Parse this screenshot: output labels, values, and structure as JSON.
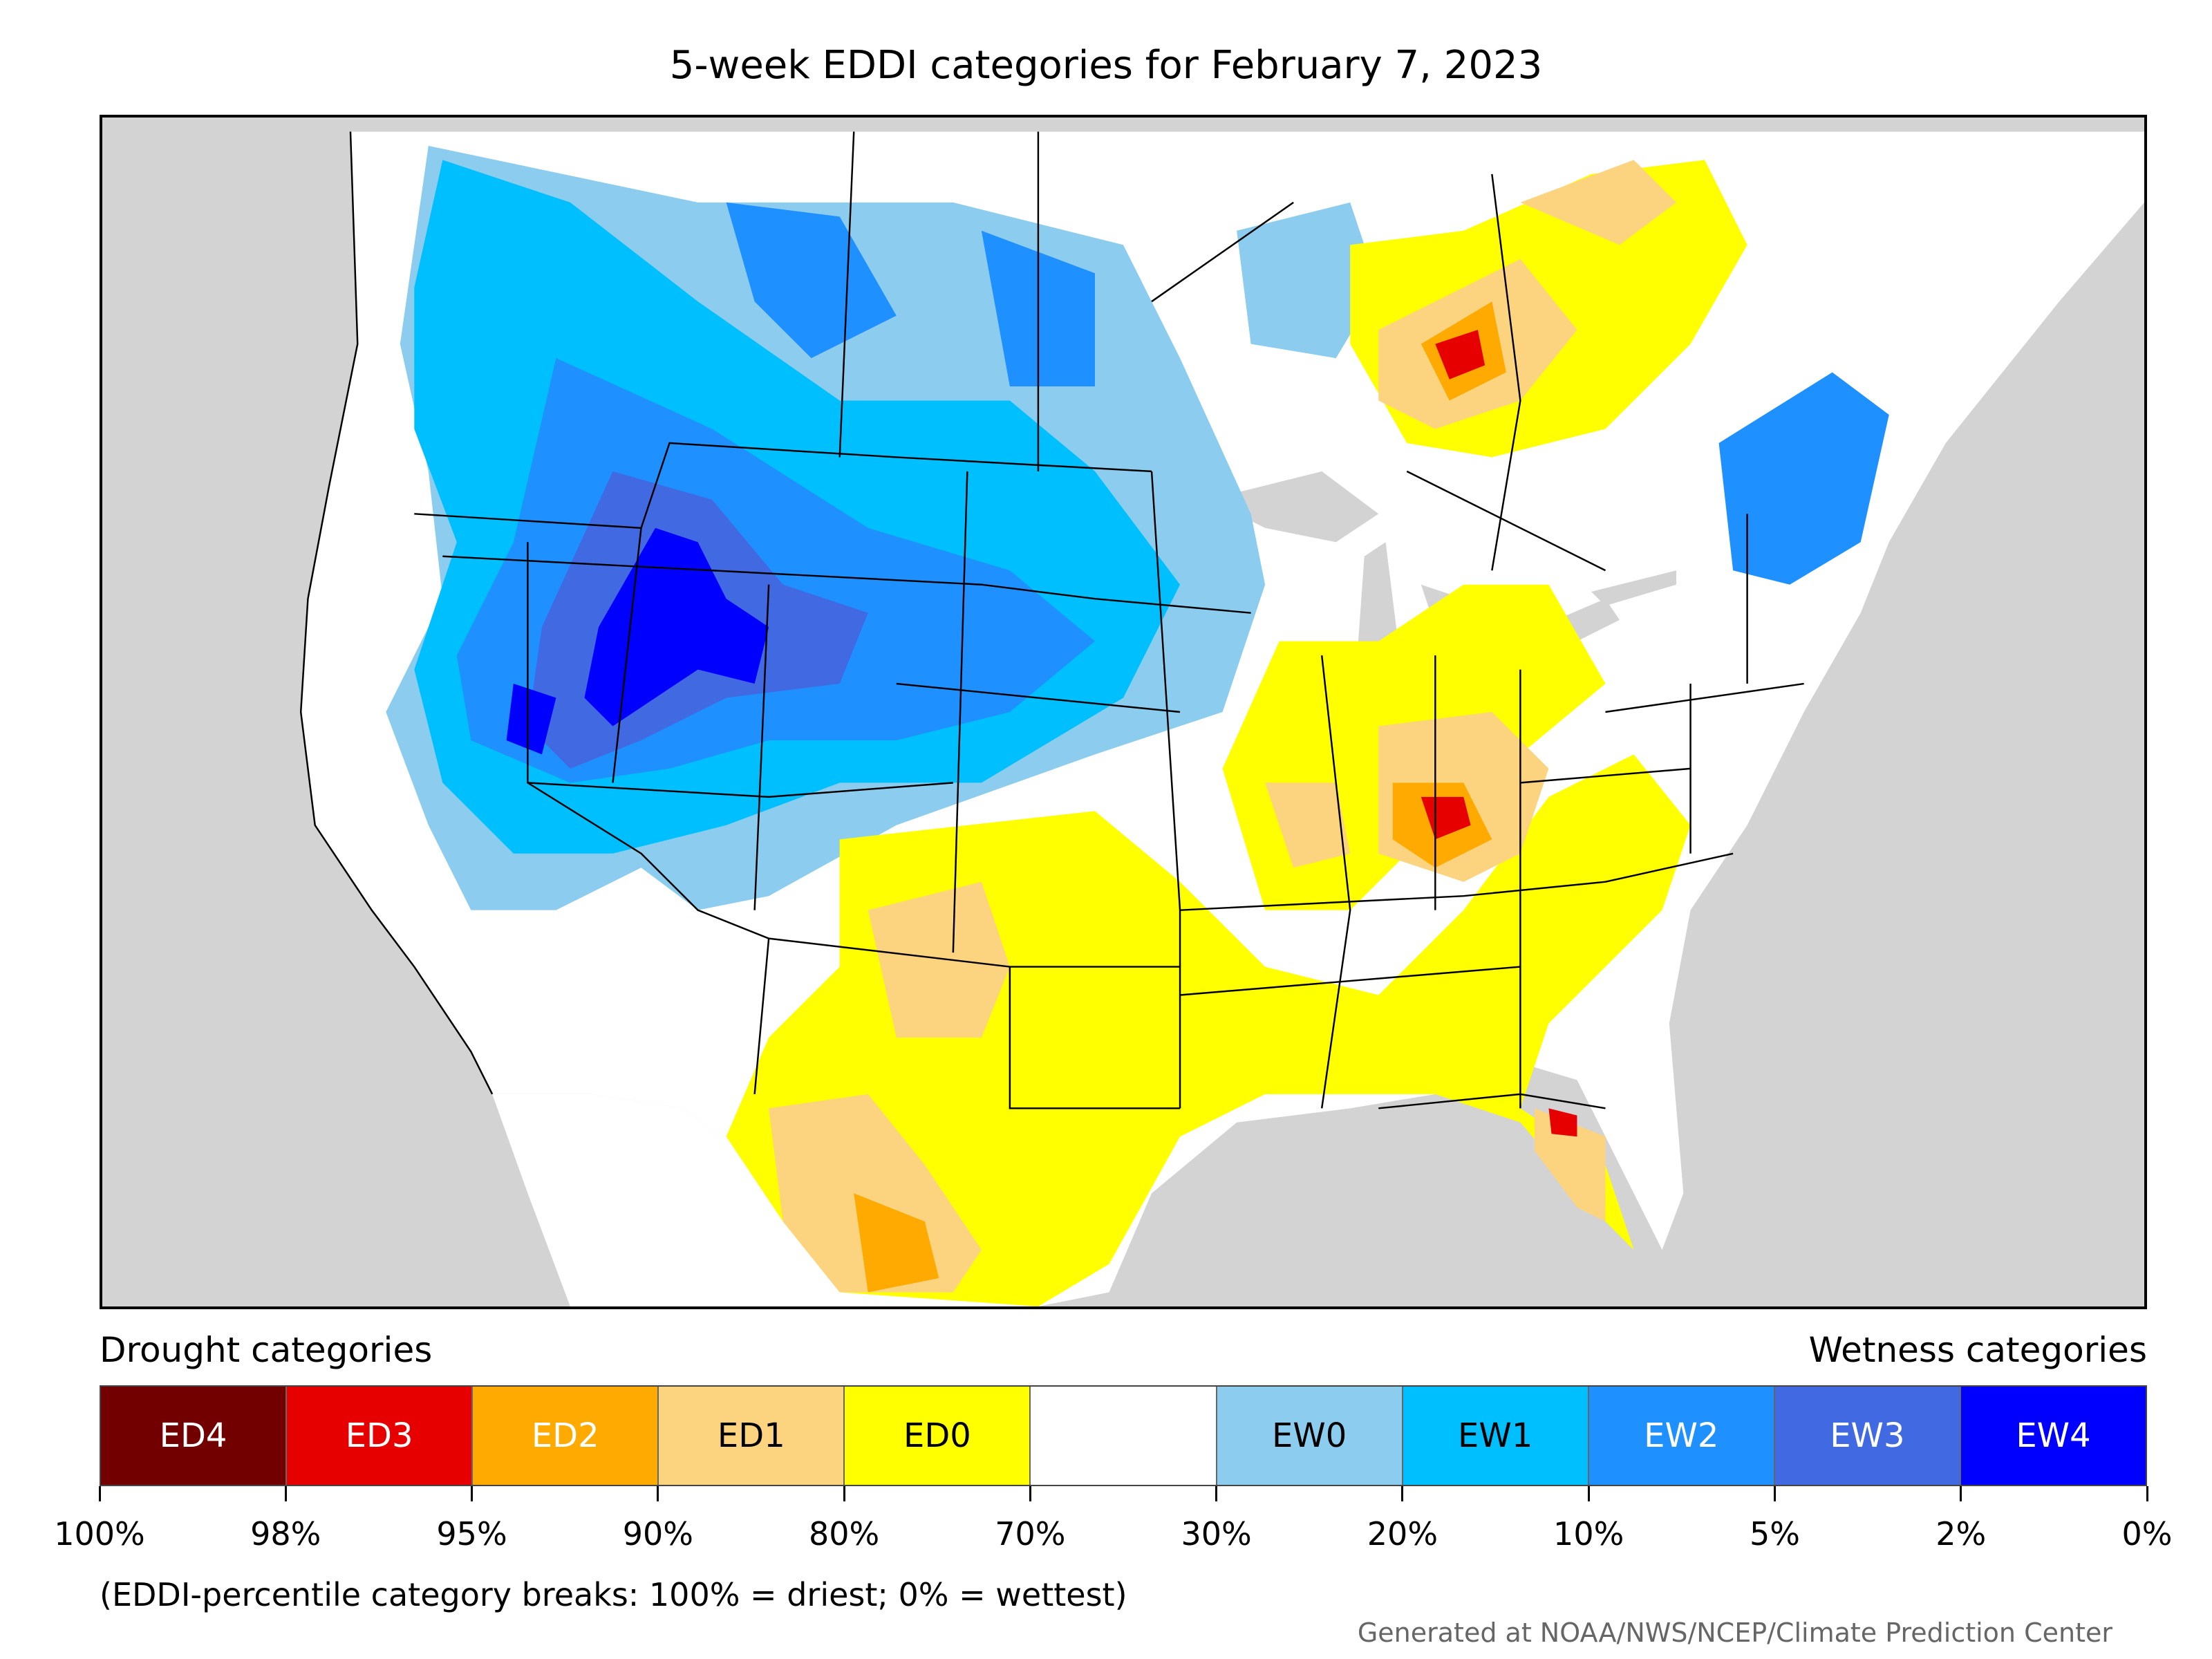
{
  "title": "5-week EDDI categories for February 7, 2023",
  "legend": {
    "drought_heading": "Drought categories",
    "wetness_heading": "Wetness categories",
    "categories": [
      {
        "label": "ED4",
        "color": "#730000",
        "text_color": "#ffffff"
      },
      {
        "label": "ED3",
        "color": "#e60000",
        "text_color": "#ffffff"
      },
      {
        "label": "ED2",
        "color": "#ffaa00",
        "text_color": "#ffffff"
      },
      {
        "label": "ED1",
        "color": "#fcd37f",
        "text_color": "#000000"
      },
      {
        "label": "ED0",
        "color": "#ffff00",
        "text_color": "#000000"
      },
      {
        "label": "",
        "color": "#ffffff",
        "text_color": "#000000"
      },
      {
        "label": "EW0",
        "color": "#8ccdef",
        "text_color": "#000000"
      },
      {
        "label": "EW1",
        "color": "#00bfff",
        "text_color": "#000000"
      },
      {
        "label": "EW2",
        "color": "#1e90ff",
        "text_color": "#ffffff"
      },
      {
        "label": "EW3",
        "color": "#4169e1",
        "text_color": "#ffffff"
      },
      {
        "label": "EW4",
        "color": "#0000ff",
        "text_color": "#ffffff"
      }
    ],
    "ticks": [
      "100%",
      "98%",
      "95%",
      "90%",
      "80%",
      "70%",
      "30%",
      "20%",
      "10%",
      "5%",
      "2%",
      "0%"
    ]
  },
  "note": "(EDDI-percentile category breaks: 100% = driest; 0% = wettest)",
  "credit": "Generated at NOAA/NWS/NCEP/Climate Prediction Center"
}
